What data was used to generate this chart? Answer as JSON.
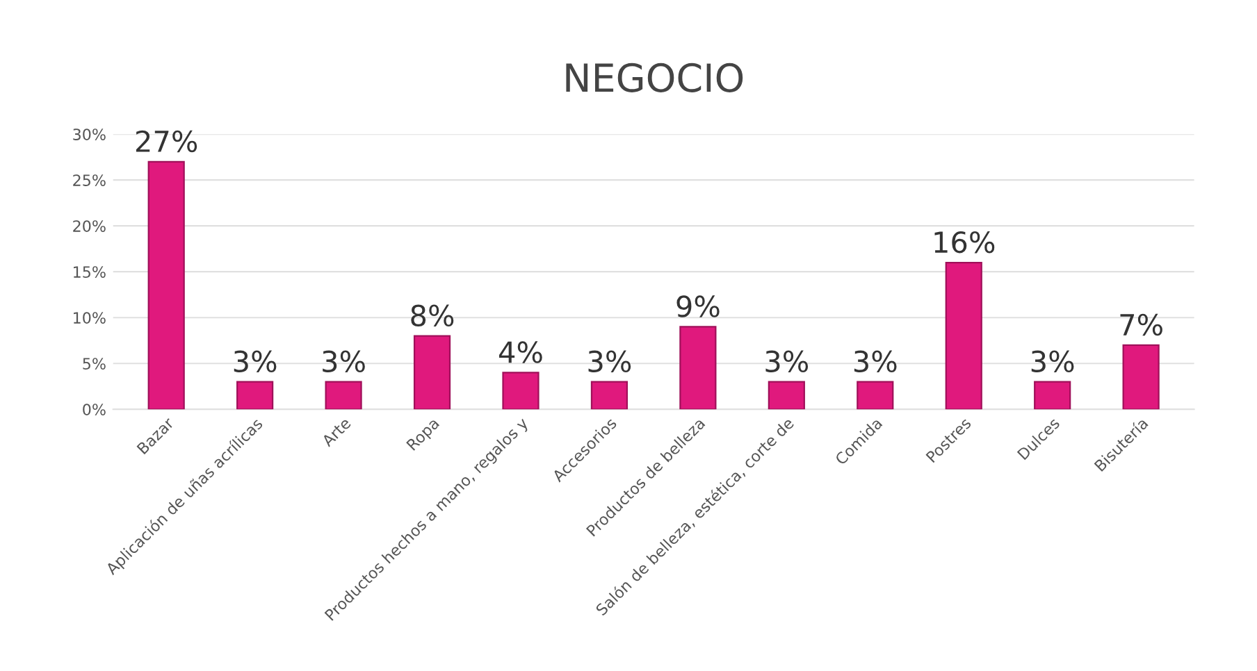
{
  "chart_data": {
    "type": "bar",
    "title": "NEGOCIO",
    "categories": [
      "Bazar",
      "Aplicación de uñas acrílicas",
      "Arte",
      "Ropa",
      "Productos hechos a mano, regalos y",
      "Accesorios",
      "Productos de belleza",
      "Salón de belleza, estética, corte de",
      "Comida",
      "Postres",
      "Dulces",
      "Bisutería"
    ],
    "values": [
      27,
      3,
      3,
      8,
      4,
      3,
      9,
      3,
      3,
      16,
      3,
      7
    ],
    "value_labels": [
      "27%",
      "3%",
      "3%",
      "8%",
      "4%",
      "3%",
      "9%",
      "3%",
      "3%",
      "16%",
      "3%",
      "7%"
    ],
    "color": "#e0197d",
    "ylim": [
      0,
      30
    ],
    "yticks": [
      {
        "value": 0,
        "label": "0%"
      },
      {
        "value": 5,
        "label": "5%"
      },
      {
        "value": 10,
        "label": "10%"
      },
      {
        "value": 15,
        "label": "15%"
      },
      {
        "value": 20,
        "label": "20%"
      },
      {
        "value": 25,
        "label": "25%"
      },
      {
        "value": 30,
        "label": "30%"
      }
    ],
    "grid": "y"
  }
}
